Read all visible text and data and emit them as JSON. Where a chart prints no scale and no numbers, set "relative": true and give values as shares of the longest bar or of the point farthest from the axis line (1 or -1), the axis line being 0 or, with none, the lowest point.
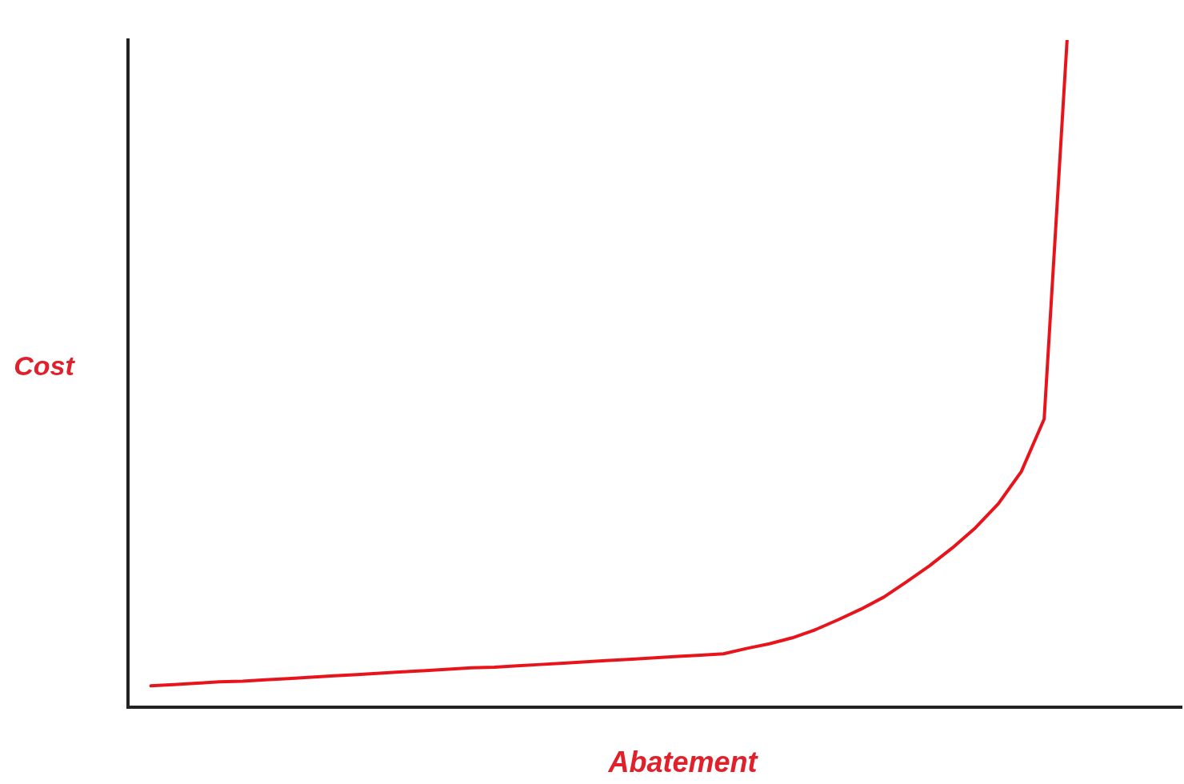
{
  "chart_data": {
    "type": "line",
    "relative": true,
    "xlabel": "Abatement",
    "ylabel": "Cost",
    "grid": false,
    "legend": false,
    "marker": "none",
    "categories": [
      null,
      null,
      null,
      null,
      null,
      null,
      null,
      null,
      null,
      null,
      null,
      null,
      null,
      null,
      null,
      null,
      null,
      null,
      null,
      null,
      null,
      null,
      null,
      null,
      null,
      null,
      null,
      null,
      null,
      null,
      null,
      null,
      null,
      null,
      null,
      null,
      null,
      null,
      null,
      null,
      null,
      null,
      null,
      null,
      null,
      null,
      null
    ],
    "series": [
      {
        "color": "#e8141c",
        "values": [
          null,
          0.032,
          0.034,
          0.036,
          0.038,
          0.039,
          0.041,
          0.043,
          0.045,
          0.047,
          0.049,
          0.051,
          0.053,
          0.055,
          0.057,
          0.059,
          0.06,
          0.062,
          0.064,
          0.066,
          0.068,
          0.07,
          0.072,
          0.074,
          0.076,
          0.078,
          0.08,
          0.088,
          0.095,
          0.104,
          0.116,
          0.131,
          0.147,
          0.165,
          0.188,
          0.212,
          0.239,
          0.269,
          0.305,
          0.353,
          0.432,
          1,
          null,
          null,
          null,
          null,
          null
        ]
      }
    ]
  }
}
